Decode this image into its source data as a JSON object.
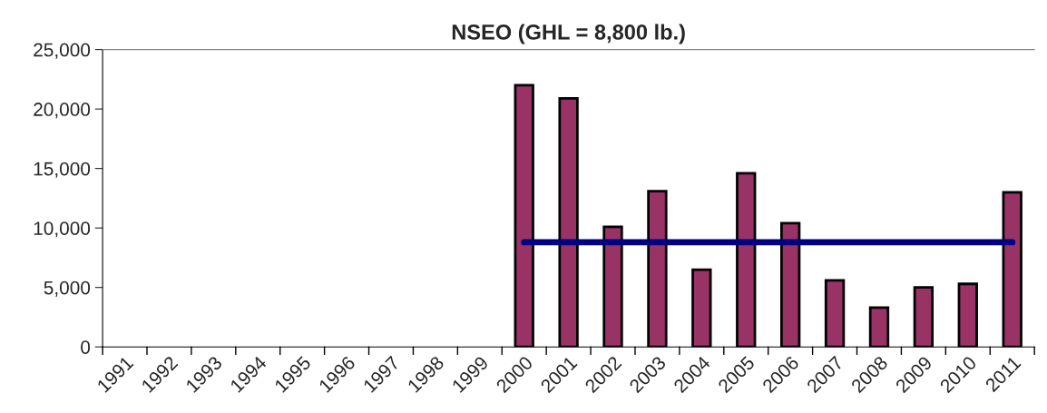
{
  "chart_data": {
    "type": "bar",
    "title": "NSEO (GHL = 8,800 lb.)",
    "categories": [
      "1991",
      "1992",
      "1993",
      "1994",
      "1995",
      "1996",
      "1997",
      "1998",
      "1999",
      "2000",
      "2001",
      "2002",
      "2003",
      "2004",
      "2005",
      "2006",
      "2007",
      "2008",
      "2009",
      "2010",
      "2011"
    ],
    "series": [
      {
        "color": "#993366",
        "values": [
          null,
          null,
          null,
          null,
          null,
          null,
          null,
          null,
          null,
          22000,
          20900,
          10100,
          13100,
          6500,
          14600,
          10400,
          5600,
          3300,
          5000,
          5300,
          13000
        ]
      },
      {
        "type": "line",
        "color": "#000080",
        "values": [
          null,
          null,
          null,
          null,
          null,
          null,
          null,
          null,
          null,
          8800,
          8800,
          8800,
          8800,
          8800,
          8800,
          8800,
          8800,
          8800,
          8800,
          8800,
          8800
        ]
      }
    ],
    "ylim": [
      0,
      25000
    ],
    "yticks": [
      {
        "value": 0,
        "label": "0"
      },
      {
        "value": 5000,
        "label": "5,000"
      },
      {
        "value": 10000,
        "label": "10,000"
      },
      {
        "value": 15000,
        "label": "15,000"
      },
      {
        "value": 20000,
        "label": "20,000"
      },
      {
        "value": 25000,
        "label": "25,000"
      }
    ],
    "grid": false,
    "legend": false
  }
}
